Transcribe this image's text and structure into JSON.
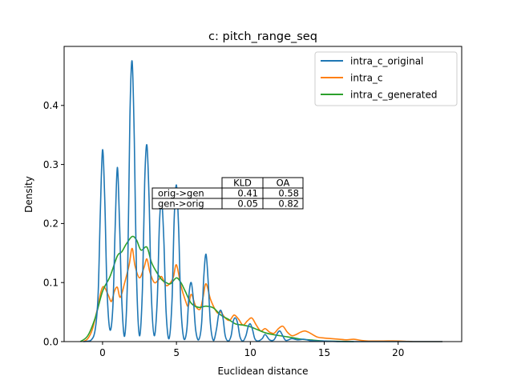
{
  "chart_data": {
    "type": "line",
    "title": "c: pitch_range_seq",
    "xlabel": "Euclidean distance",
    "ylabel": "Density",
    "xlim": [
      -2.6,
      24.3
    ],
    "ylim": [
      0,
      0.5
    ],
    "xticks": [
      0,
      5,
      10,
      15,
      20
    ],
    "yticks": [
      0.0,
      0.1,
      0.2,
      0.3,
      0.4
    ],
    "grid": false,
    "legend_position": "top-right",
    "series": [
      {
        "name": "intra_c_original",
        "color": "#1f77b4",
        "x": [
          -1.3,
          -0.8,
          -0.5,
          -0.3,
          -0.15,
          0,
          0.15,
          0.3,
          0.5,
          0.7,
          0.85,
          1,
          1.15,
          1.3,
          1.5,
          1.7,
          1.85,
          2,
          2.15,
          2.3,
          2.5,
          2.7,
          2.85,
          3,
          3.15,
          3.3,
          3.5,
          3.7,
          3.85,
          4,
          4.15,
          4.3,
          4.5,
          4.7,
          4.85,
          5,
          5.15,
          5.3,
          5.5,
          5.7,
          5.85,
          6,
          6.15,
          6.3,
          6.5,
          6.7,
          6.85,
          7,
          7.15,
          7.3,
          7.5,
          7.7,
          7.85,
          8,
          8.15,
          8.3,
          8.5,
          8.7,
          8.85,
          9,
          9.15,
          9.3,
          9.5,
          9.7,
          9.85,
          10,
          10.15,
          10.3,
          10.5,
          10.8,
          11,
          11.3,
          11.6,
          11.85,
          12,
          12.15,
          12.4,
          12.8,
          13.2,
          13.6,
          14,
          14.5,
          15,
          16,
          17,
          19,
          21,
          23
        ],
        "y": [
          0,
          0.002,
          0.02,
          0.08,
          0.22,
          0.325,
          0.24,
          0.09,
          0.02,
          0.06,
          0.19,
          0.295,
          0.2,
          0.07,
          0.01,
          0.12,
          0.38,
          0.475,
          0.34,
          0.11,
          0.01,
          0.09,
          0.27,
          0.333,
          0.24,
          0.08,
          0.01,
          0.07,
          0.2,
          0.24,
          0.17,
          0.05,
          0.005,
          0.07,
          0.21,
          0.265,
          0.19,
          0.06,
          0.005,
          0.02,
          0.08,
          0.1,
          0.07,
          0.02,
          0.003,
          0.03,
          0.11,
          0.148,
          0.1,
          0.03,
          0.002,
          0.02,
          0.045,
          0.053,
          0.04,
          0.01,
          0.001,
          0.01,
          0.035,
          0.04,
          0.03,
          0.008,
          0.001,
          0.01,
          0.025,
          0.03,
          0.02,
          0.005,
          0.001,
          0.005,
          0.012,
          0.003,
          0.003,
          0.015,
          0.018,
          0.012,
          0.002,
          0.005,
          0.003,
          0.004,
          0.002,
          0.001,
          0.001,
          0,
          0,
          0,
          0,
          0
        ]
      },
      {
        "name": "intra_c",
        "color": "#ff7f0e",
        "x": [
          -1.3,
          -1,
          -0.7,
          -0.4,
          -0.1,
          0.1,
          0.4,
          0.6,
          0.8,
          1,
          1.2,
          1.5,
          1.8,
          2,
          2.2,
          2.5,
          2.8,
          3,
          3.2,
          3.5,
          3.8,
          4,
          4.3,
          4.6,
          4.8,
          5,
          5.3,
          5.6,
          5.8,
          6,
          6.3,
          6.6,
          6.8,
          7,
          7.3,
          7.6,
          7.8,
          8,
          8.3,
          8.6,
          8.9,
          9.2,
          9.5,
          9.8,
          10.1,
          10.4,
          10.7,
          11,
          11.3,
          11.6,
          11.9,
          12.2,
          12.5,
          12.8,
          13.1,
          13.4,
          13.7,
          14,
          14.5,
          15,
          15.5,
          16,
          16.5,
          17,
          17.5,
          18,
          19,
          20,
          21,
          22,
          23
        ],
        "y": [
          0,
          0.005,
          0.02,
          0.05,
          0.085,
          0.093,
          0.078,
          0.068,
          0.085,
          0.092,
          0.075,
          0.1,
          0.13,
          0.158,
          0.128,
          0.108,
          0.125,
          0.14,
          0.118,
          0.1,
          0.105,
          0.11,
          0.095,
          0.1,
          0.11,
          0.13,
          0.095,
          0.07,
          0.06,
          0.08,
          0.06,
          0.055,
          0.075,
          0.098,
          0.072,
          0.055,
          0.048,
          0.05,
          0.04,
          0.036,
          0.045,
          0.038,
          0.028,
          0.035,
          0.04,
          0.028,
          0.018,
          0.022,
          0.016,
          0.014,
          0.022,
          0.026,
          0.016,
          0.01,
          0.012,
          0.016,
          0.018,
          0.015,
          0.008,
          0.006,
          0.005,
          0.004,
          0.003,
          0.004,
          0.002,
          0.001,
          0.001,
          0.001,
          0,
          0,
          0
        ]
      },
      {
        "name": "intra_c_generated",
        "color": "#2ca02c",
        "x": [
          -1.5,
          -1,
          -0.5,
          0,
          0.5,
          1,
          1.3,
          1.6,
          2,
          2.3,
          2.6,
          3,
          3.3,
          3.6,
          4,
          4.3,
          4.6,
          5,
          5.3,
          5.6,
          6,
          6.5,
          7,
          7.5,
          8,
          8.5,
          9,
          9.5,
          10,
          10.5,
          11,
          11.5,
          12,
          12.5,
          13,
          13.5,
          14,
          15,
          16,
          17
        ],
        "y": [
          0,
          0.01,
          0.04,
          0.085,
          0.11,
          0.145,
          0.152,
          0.165,
          0.178,
          0.172,
          0.155,
          0.16,
          0.135,
          0.12,
          0.105,
          0.1,
          0.098,
          0.108,
          0.1,
          0.085,
          0.065,
          0.058,
          0.06,
          0.057,
          0.045,
          0.038,
          0.03,
          0.028,
          0.025,
          0.02,
          0.015,
          0.012,
          0.01,
          0.008,
          0.006,
          0.004,
          0.003,
          0.001,
          0.0005,
          0
        ]
      }
    ],
    "table": {
      "columns": [
        "KLD",
        "OA"
      ],
      "rows": [
        {
          "label": "orig->gen",
          "values": [
            "0.41",
            "0.58"
          ]
        },
        {
          "label": "gen->orig",
          "values": [
            "0.05",
            "0.82"
          ]
        }
      ]
    }
  }
}
